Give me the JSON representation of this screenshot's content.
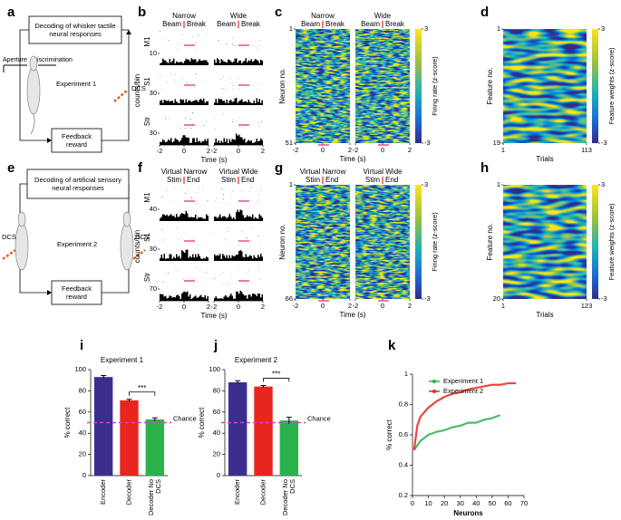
{
  "diagrams": [
    {
      "label": "a",
      "decoder": "Decoding of whisker tactile neural responses",
      "aperture": "Aperture",
      "discrimination": "Discrimination",
      "experiment": "Experiment 1",
      "dcs": "DCS",
      "feedback": "Feedback reward"
    },
    {
      "label": "e",
      "decoder": "Decoding of artificial sensory neural responses",
      "dcs_left": "DCS",
      "experiment": "Experiment 2",
      "dcs_right": "DCS",
      "feedback": "Feedback reward"
    }
  ],
  "rasters": [
    {
      "label": "b",
      "columns": [
        {
          "name": "Narrow",
          "left": "Beam",
          "right": "Break"
        },
        {
          "name": "Wide",
          "left": "Beam",
          "right": "Break"
        }
      ],
      "regions": [
        "M1",
        "S1",
        "Str"
      ],
      "region_ticks": [
        10,
        30,
        30
      ],
      "ylabel": "counts/bin",
      "xticks": [
        -2,
        0,
        2
      ],
      "xlabel": "Time (s)"
    },
    {
      "label": "f",
      "columns": [
        {
          "name": "Virtual Narrow",
          "left": "Stim",
          "right": "End"
        },
        {
          "name": "Virtual Wide",
          "left": "Stim",
          "right": "End"
        }
      ],
      "regions": [
        "M1",
        "S1",
        "Str"
      ],
      "region_ticks": [
        40,
        30,
        70
      ],
      "ylabel": "counts/bin",
      "xticks": [
        -2,
        0,
        2
      ],
      "xlabel": "Time (s)"
    }
  ],
  "heatmaps": [
    {
      "label": "c",
      "columns": [
        {
          "name": "Narrow",
          "left": "Beam",
          "right": "Break"
        },
        {
          "name": "Wide",
          "left": "Beam",
          "right": "Break"
        }
      ],
      "ylabel": "Neuron no.",
      "yticks": [
        1,
        51
      ],
      "xticks": [
        -2,
        0,
        2
      ],
      "xlabel": "Time (s)",
      "colorbar": {
        "ticks": [
          3,
          -3
        ],
        "label": "Firing rate (z-score)"
      }
    },
    {
      "label": "d",
      "ylabel": "Feature no.",
      "yticks": [
        1,
        19
      ],
      "xticks": [
        1,
        113
      ],
      "xlabel": "Trials",
      "colorbar": {
        "ticks": [
          3,
          -3
        ],
        "label": "Feature weights (z-score)"
      }
    },
    {
      "label": "g",
      "columns": [
        {
          "name": "Virtual Narrow",
          "left": "Stim",
          "right": "End"
        },
        {
          "name": "Virtual Wide",
          "left": "Stim",
          "right": "End"
        }
      ],
      "ylabel": "Neuron no.",
      "yticks": [
        1,
        66
      ],
      "xticks": [
        -2,
        0,
        2
      ],
      "xlabel": "Time (s)",
      "colorbar": {
        "ticks": [
          3,
          -3
        ],
        "label": "Firing rate (z-score)"
      }
    },
    {
      "label": "h",
      "ylabel": "Feature no.",
      "yticks": [
        1,
        20
      ],
      "xticks": [
        1,
        123
      ],
      "xlabel": "Trials",
      "colorbar": {
        "ticks": [
          3,
          -3
        ],
        "label": "Feature weights (z-score)"
      }
    }
  ],
  "chart_data": [
    {
      "type": "bar",
      "panel": "i",
      "title": "Experiment 1",
      "categories": [
        "Encoder",
        "Decoder",
        "Decoder No DCS"
      ],
      "values": [
        93,
        71,
        53
      ],
      "errors": [
        1.5,
        1,
        1.5
      ],
      "colors": [
        "#3b2e8f",
        "#e8261f",
        "#2bb24c"
      ],
      "ylim": [
        0,
        100
      ],
      "yticks": [
        0,
        20,
        40,
        60,
        80,
        100
      ],
      "ylabel": "% correct",
      "reference_line": {
        "value": 50,
        "label": "Chance",
        "color": "#d63fd6"
      },
      "significance": "***"
    },
    {
      "type": "bar",
      "panel": "j",
      "title": "Experiment 2",
      "categories": [
        "Encoder",
        "Decoder",
        "Decoder No DCS"
      ],
      "values": [
        88,
        84,
        52
      ],
      "errors": [
        1.5,
        1,
        3
      ],
      "colors": [
        "#3b2e8f",
        "#e8261f",
        "#2bb24c"
      ],
      "ylim": [
        0,
        100
      ],
      "yticks": [
        0,
        20,
        40,
        60,
        80,
        100
      ],
      "ylabel": "% correct",
      "reference_line": {
        "value": 50,
        "label": "Chance",
        "color": "#d63fd6"
      },
      "significance": "***"
    },
    {
      "type": "line",
      "panel": "k",
      "xlabel": "Neurons",
      "ylabel": "% correct",
      "xlim": [
        0,
        70
      ],
      "xticks": [
        0,
        10,
        20,
        30,
        40,
        50,
        60,
        70
      ],
      "ylim": [
        0.2,
        1
      ],
      "yticks": [
        0.2,
        0.4,
        0.6,
        0.8,
        1
      ],
      "legend": "upper left",
      "series": [
        {
          "name": "Experiment 1",
          "color": "#2bb24c",
          "x": [
            1,
            5,
            10,
            15,
            20,
            25,
            30,
            35,
            40,
            45,
            50,
            55
          ],
          "values": [
            0.5,
            0.56,
            0.6,
            0.62,
            0.63,
            0.65,
            0.66,
            0.68,
            0.68,
            0.7,
            0.71,
            0.73
          ]
        },
        {
          "name": "Experiment 2",
          "color": "#e8261f",
          "x": [
            1,
            3,
            5,
            10,
            15,
            20,
            25,
            30,
            35,
            40,
            45,
            50,
            55,
            60,
            65
          ],
          "values": [
            0.5,
            0.66,
            0.72,
            0.78,
            0.82,
            0.85,
            0.87,
            0.88,
            0.9,
            0.91,
            0.92,
            0.93,
            0.93,
            0.94,
            0.94
          ]
        }
      ]
    }
  ]
}
